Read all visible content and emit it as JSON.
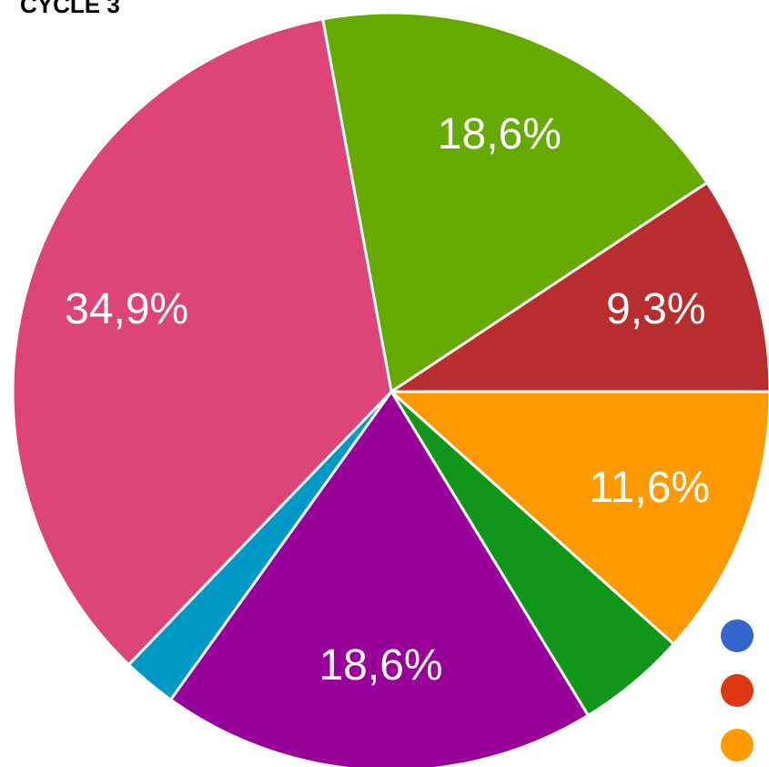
{
  "chart_data": {
    "type": "pie",
    "title": "CYCLE 3",
    "values": [
      18.6,
      9.3,
      11.6,
      4.7,
      18.6,
      2.3,
      34.9
    ],
    "value_labels": [
      "18,6%",
      "9,3%",
      "11,6%",
      null,
      "18,6%",
      null,
      "34,9%"
    ],
    "colors": [
      "#66aa00",
      "#b82e2e",
      "#ff9900",
      "#109618",
      "#990099",
      "#0099c6",
      "#dd4477"
    ]
  }
}
